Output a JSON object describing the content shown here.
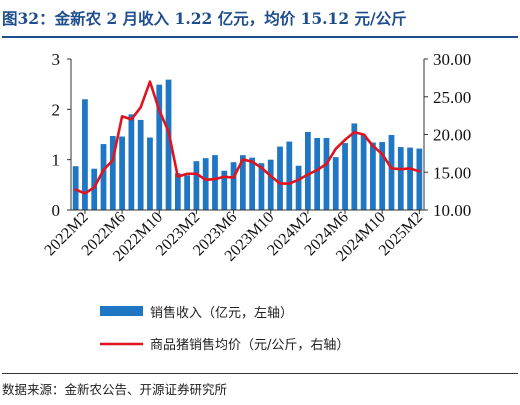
{
  "title": "图32：金新农 2 月收入 1.22 亿元，均价 15.12 元/公斤",
  "source": "数据来源：金新农公告、开源证券研究所",
  "chart_data": {
    "type": "bar",
    "x": [
      "2022M1",
      "2022M2",
      "2022M3",
      "2022M4",
      "2022M5",
      "2022M6",
      "2022M7",
      "2022M8",
      "2022M9",
      "2022M10",
      "2022M11",
      "2022M12",
      "2023M1",
      "2023M2",
      "2023M3",
      "2023M4",
      "2023M5",
      "2023M6",
      "2023M7",
      "2023M8",
      "2023M9",
      "2023M10",
      "2023M11",
      "2023M12",
      "2024M1",
      "2024M2",
      "2024M3",
      "2024M4",
      "2024M5",
      "2024M6",
      "2024M7",
      "2024M8",
      "2024M9",
      "2024M10",
      "2024M11",
      "2024M12",
      "2025M1",
      "2025M2"
    ],
    "x_tick_labels": [
      "2022M2",
      "2022M6",
      "2022M10",
      "2023M2",
      "2023M6",
      "2023M10",
      "2024M2",
      "2024M6",
      "2024M10",
      "2025M2"
    ],
    "series": [
      {
        "name": "销售收入（亿元，左轴）",
        "kind": "bar",
        "axis": "left",
        "color": "#1f77c4",
        "values": [
          0.87,
          2.2,
          0.82,
          1.31,
          1.47,
          1.46,
          1.9,
          1.79,
          1.44,
          2.49,
          2.59,
          0.73,
          0.69,
          0.97,
          1.03,
          1.09,
          0.78,
          0.95,
          1.09,
          1.04,
          0.93,
          1.0,
          1.26,
          1.36,
          0.88,
          1.55,
          1.43,
          1.43,
          1.05,
          1.33,
          1.72,
          1.5,
          1.34,
          1.35,
          1.49,
          1.25,
          1.24,
          1.22
        ]
      },
      {
        "name": "商品猪销售均价（元/公斤，右轴）",
        "kind": "line",
        "axis": "right",
        "color": "#e0141e",
        "values": [
          12.7,
          12.2,
          13.0,
          15.3,
          16.6,
          22.4,
          22.0,
          23.6,
          27.0,
          23.2,
          20.4,
          14.4,
          14.8,
          14.8,
          14.0,
          14.1,
          14.4,
          14.3,
          16.7,
          16.4,
          15.6,
          14.5,
          13.5,
          13.5,
          14.0,
          14.7,
          15.3,
          16.1,
          18.1,
          19.3,
          20.3,
          20.0,
          18.5,
          17.4,
          15.5,
          15.4,
          15.5,
          15.12
        ]
      }
    ],
    "left_axis": {
      "ylim": [
        0,
        3
      ],
      "ticks": [
        "0",
        "1",
        "2",
        "3"
      ]
    },
    "right_axis": {
      "ylim": [
        10,
        30
      ],
      "ticks": [
        "10.00",
        "15.00",
        "20.00",
        "25.00",
        "30.00"
      ]
    },
    "legend": {
      "placement": "bottom"
    },
    "grid": false
  }
}
